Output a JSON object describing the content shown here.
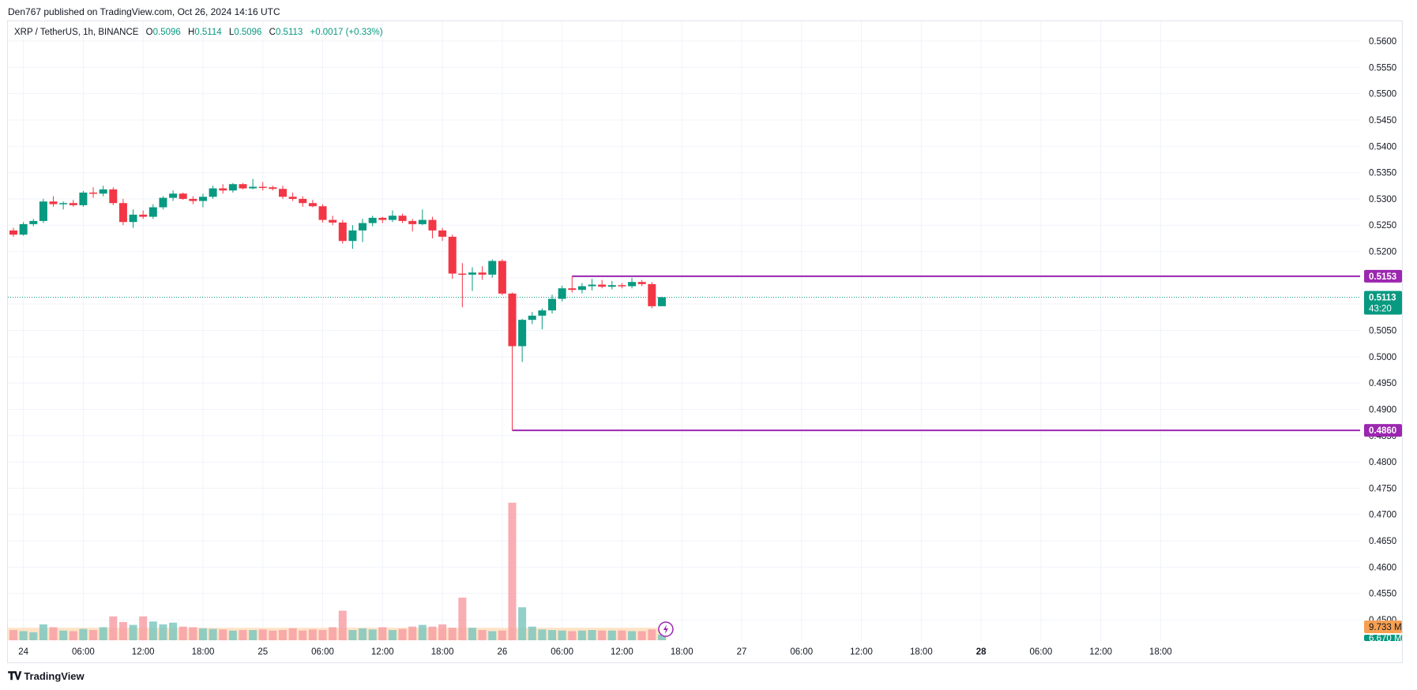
{
  "header": {
    "published": "Den767 published on TradingView.com, Oct 26, 2024 14:16 UTC"
  },
  "legend": {
    "symbol": "XRP / TetherUS, 1h, BINANCE",
    "o_label": "O",
    "o": "0.5096",
    "h_label": "H",
    "h": "0.5114",
    "l_label": "L",
    "l": "0.5096",
    "c_label": "C",
    "c": "0.5113",
    "change": "+0.0017 (+0.33%)"
  },
  "price_tags": {
    "resistance": "0.5153",
    "current": "0.5113",
    "countdown": "43:20",
    "support": "0.4860",
    "volume": "9.733 M",
    "volume_ma": "6.670 M"
  },
  "footer": {
    "brand": "TradingView"
  },
  "colors": {
    "up": "#089981",
    "down": "#f23645",
    "level_line": "#9c27b0",
    "grid": "#f0f3fa",
    "vol_ma_fill": "#ffcc99",
    "tag_bg": "#9c27b0",
    "current_tag": "#089981",
    "vol_tag": "#f7a051"
  },
  "chart_data": {
    "type": "candlestick",
    "symbol": "XRP / TetherUS",
    "interval": "1h",
    "exchange": "BINANCE",
    "ylim": [
      0.45,
      0.56
    ],
    "y_ticks": [
      "0.5600",
      "0.5550",
      "0.5500",
      "0.5450",
      "0.5400",
      "0.5350",
      "0.5300",
      "0.5250",
      "0.5200",
      "0.5150",
      "0.5100",
      "0.5050",
      "0.5000",
      "0.4950",
      "0.4900",
      "0.4850",
      "0.4800",
      "0.4750",
      "0.4700",
      "0.4650",
      "0.4600",
      "0.4550",
      "0.4500"
    ],
    "x_ticks": [
      {
        "label": "24",
        "idx": 1,
        "bold": false
      },
      {
        "label": "06:00",
        "idx": 7,
        "bold": false
      },
      {
        "label": "12:00",
        "idx": 13,
        "bold": false
      },
      {
        "label": "18:00",
        "idx": 19,
        "bold": false
      },
      {
        "label": "25",
        "idx": 25,
        "bold": false
      },
      {
        "label": "06:00",
        "idx": 31,
        "bold": false
      },
      {
        "label": "12:00",
        "idx": 37,
        "bold": false
      },
      {
        "label": "18:00",
        "idx": 43,
        "bold": false
      },
      {
        "label": "26",
        "idx": 49,
        "bold": false
      },
      {
        "label": "06:00",
        "idx": 55,
        "bold": false
      },
      {
        "label": "12:00",
        "idx": 61,
        "bold": false
      },
      {
        "label": "18:00",
        "idx": 67,
        "bold": false
      },
      {
        "label": "27",
        "idx": 73,
        "bold": false
      },
      {
        "label": "06:00",
        "idx": 79,
        "bold": false
      },
      {
        "label": "12:00",
        "idx": 85,
        "bold": false
      },
      {
        "label": "18:00",
        "idx": 91,
        "bold": false
      },
      {
        "label": "28",
        "idx": 97,
        "bold": true
      },
      {
        "label": "06:00",
        "idx": 103,
        "bold": false
      },
      {
        "label": "12:00",
        "idx": 109,
        "bold": false
      },
      {
        "label": "18:00",
        "idx": 115,
        "bold": false
      }
    ],
    "candles": [
      [
        0.524,
        0.5245,
        0.5228,
        0.5232
      ],
      [
        0.5232,
        0.5256,
        0.523,
        0.5252
      ],
      [
        0.5252,
        0.5262,
        0.5248,
        0.5258
      ],
      [
        0.5258,
        0.53,
        0.5254,
        0.5295
      ],
      [
        0.5295,
        0.5305,
        0.5285,
        0.529
      ],
      [
        0.529,
        0.5295,
        0.528,
        0.5292
      ],
      [
        0.5292,
        0.5298,
        0.5285,
        0.5288
      ],
      [
        0.5288,
        0.5315,
        0.5285,
        0.5312
      ],
      [
        0.5312,
        0.5322,
        0.5302,
        0.531
      ],
      [
        0.531,
        0.5325,
        0.5305,
        0.5318
      ],
      [
        0.5318,
        0.5322,
        0.5288,
        0.5292
      ],
      [
        0.5292,
        0.53,
        0.525,
        0.5256
      ],
      [
        0.5256,
        0.528,
        0.5245,
        0.527
      ],
      [
        0.527,
        0.5278,
        0.5262,
        0.5266
      ],
      [
        0.5266,
        0.529,
        0.5262,
        0.5284
      ],
      [
        0.5284,
        0.5305,
        0.528,
        0.5302
      ],
      [
        0.5302,
        0.5316,
        0.5296,
        0.531
      ],
      [
        0.531,
        0.5312,
        0.5298,
        0.53
      ],
      [
        0.53,
        0.5305,
        0.529,
        0.5296
      ],
      [
        0.5296,
        0.531,
        0.5284,
        0.5304
      ],
      [
        0.5304,
        0.5325,
        0.53,
        0.532
      ],
      [
        0.532,
        0.5328,
        0.531,
        0.5316
      ],
      [
        0.5316,
        0.533,
        0.5312,
        0.5328
      ],
      [
        0.5328,
        0.533,
        0.5318,
        0.532
      ],
      [
        0.532,
        0.5338,
        0.5318,
        0.5323
      ],
      [
        0.5323,
        0.5332,
        0.5316,
        0.5322
      ],
      [
        0.5322,
        0.5325,
        0.5316,
        0.5319
      ],
      [
        0.5319,
        0.5325,
        0.53,
        0.5304
      ],
      [
        0.5304,
        0.5312,
        0.5296,
        0.53
      ],
      [
        0.53,
        0.5305,
        0.5285,
        0.5292
      ],
      [
        0.5292,
        0.5298,
        0.5284,
        0.5286
      ],
      [
        0.5286,
        0.529,
        0.5255,
        0.526
      ],
      [
        0.526,
        0.5268,
        0.525,
        0.5255
      ],
      [
        0.5255,
        0.526,
        0.5215,
        0.522
      ],
      [
        0.522,
        0.525,
        0.5205,
        0.524
      ],
      [
        0.524,
        0.5262,
        0.5218,
        0.5254
      ],
      [
        0.5254,
        0.5268,
        0.5248,
        0.5264
      ],
      [
        0.5264,
        0.5266,
        0.5254,
        0.526
      ],
      [
        0.526,
        0.5278,
        0.5256,
        0.5268
      ],
      [
        0.5268,
        0.5272,
        0.5254,
        0.5258
      ],
      [
        0.5258,
        0.5262,
        0.5238,
        0.5252
      ],
      [
        0.5252,
        0.528,
        0.525,
        0.526
      ],
      [
        0.526,
        0.5266,
        0.5225,
        0.524
      ],
      [
        0.524,
        0.5245,
        0.522,
        0.5228
      ],
      [
        0.5228,
        0.5232,
        0.5148,
        0.5158
      ],
      [
        0.5158,
        0.5178,
        0.5094,
        0.5156
      ],
      [
        0.5156,
        0.517,
        0.5125,
        0.516
      ],
      [
        0.516,
        0.5172,
        0.5146,
        0.5156
      ],
      [
        0.5156,
        0.5185,
        0.515,
        0.5182
      ],
      [
        0.5182,
        0.5185,
        0.5117,
        0.512
      ],
      [
        0.512,
        0.5122,
        0.486,
        0.502
      ],
      [
        0.502,
        0.5072,
        0.499,
        0.507
      ],
      [
        0.507,
        0.5085,
        0.5062,
        0.5078
      ],
      [
        0.5078,
        0.5092,
        0.5052,
        0.5088
      ],
      [
        0.5088,
        0.5118,
        0.5082,
        0.511
      ],
      [
        0.511,
        0.5135,
        0.5105,
        0.513
      ],
      [
        0.513,
        0.5153,
        0.5122,
        0.5127
      ],
      [
        0.5127,
        0.514,
        0.512,
        0.5134
      ],
      [
        0.5134,
        0.5148,
        0.5126,
        0.5137
      ],
      [
        0.5137,
        0.5146,
        0.513,
        0.5133
      ],
      [
        0.5133,
        0.5144,
        0.5128,
        0.5136
      ],
      [
        0.5136,
        0.514,
        0.513,
        0.5134
      ],
      [
        0.5134,
        0.515,
        0.513,
        0.5142
      ],
      [
        0.5142,
        0.5146,
        0.5134,
        0.5138
      ],
      [
        0.5138,
        0.5142,
        0.5092,
        0.5096
      ],
      [
        0.5096,
        0.5114,
        0.5096,
        0.5113
      ]
    ],
    "volume_heights": [
      0.18,
      0.16,
      0.14,
      0.28,
      0.23,
      0.17,
      0.16,
      0.2,
      0.18,
      0.23,
      0.42,
      0.32,
      0.27,
      0.42,
      0.33,
      0.28,
      0.31,
      0.24,
      0.23,
      0.21,
      0.2,
      0.19,
      0.17,
      0.18,
      0.18,
      0.19,
      0.17,
      0.18,
      0.21,
      0.17,
      0.19,
      0.18,
      0.23,
      0.52,
      0.18,
      0.21,
      0.19,
      0.23,
      0.18,
      0.2,
      0.24,
      0.27,
      0.24,
      0.28,
      0.22,
      0.75,
      0.22,
      0.18,
      0.16,
      0.17,
      2.42,
      0.58,
      0.24,
      0.19,
      0.18,
      0.17,
      0.16,
      0.17,
      0.18,
      0.17,
      0.17,
      0.17,
      0.16,
      0.16,
      0.19,
      0.1
    ],
    "volume_ma_level": 0.22,
    "levels": [
      {
        "value": 0.5153,
        "from_idx": 56
      },
      {
        "value": 0.486,
        "from_idx": 50
      }
    ]
  }
}
